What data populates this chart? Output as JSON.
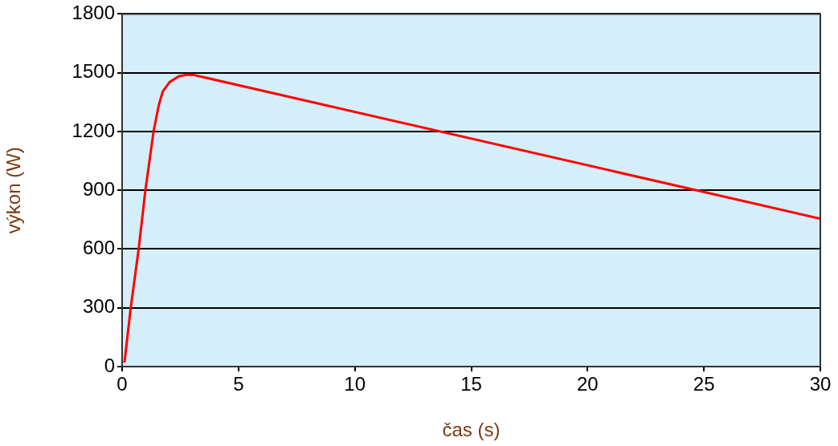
{
  "chart_data": {
    "type": "line",
    "xlabel": "čas (s)",
    "ylabel": "výkon (W)",
    "x": [
      0.1,
      0.37,
      0.71,
      1.0,
      1.35,
      1.58,
      1.75,
      2.04,
      2.44,
      2.8,
      3.1,
      30
    ],
    "series": [
      {
        "color": "#ff0000",
        "values": [
          20,
          300,
          600,
          900,
          1200,
          1337,
          1405,
          1452,
          1482,
          1490,
          1488,
          755
        ]
      }
    ],
    "xlim": [
      0,
      30
    ],
    "xticks": [
      0,
      5,
      10,
      15,
      20,
      25,
      30
    ],
    "ylim": [
      0,
      1800
    ],
    "yticks": [
      0,
      300,
      600,
      900,
      1200,
      1500,
      1800
    ],
    "grid": "y",
    "legend": false,
    "marker": "none",
    "line_style": "solid"
  }
}
